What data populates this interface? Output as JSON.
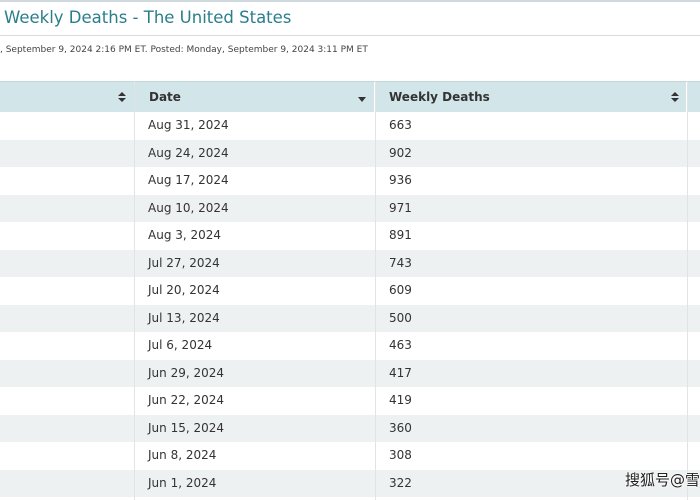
{
  "page": {
    "title": "Weekly Deaths - The United States",
    "meta": ", September 9, 2024 2:16 PM ET. Posted: Monday, September 9, 2024 3:11 PM ET"
  },
  "table": {
    "columns": [
      {
        "label": "",
        "sort": "both"
      },
      {
        "label": "Date",
        "sort": "desc"
      },
      {
        "label": "Weekly Deaths",
        "sort": "both"
      }
    ],
    "rows": [
      {
        "date": "Aug 31, 2024",
        "deaths": "663"
      },
      {
        "date": "Aug 24, 2024",
        "deaths": "902"
      },
      {
        "date": "Aug 17, 2024",
        "deaths": "936"
      },
      {
        "date": "Aug 10, 2024",
        "deaths": "971"
      },
      {
        "date": "Aug 3, 2024",
        "deaths": "891"
      },
      {
        "date": "Jul 27, 2024",
        "deaths": "743"
      },
      {
        "date": "Jul 20, 2024",
        "deaths": "609"
      },
      {
        "date": "Jul 13, 2024",
        "deaths": "500"
      },
      {
        "date": "Jul 6, 2024",
        "deaths": "463"
      },
      {
        "date": "Jun 29, 2024",
        "deaths": "417"
      },
      {
        "date": "Jun 22, 2024",
        "deaths": "419"
      },
      {
        "date": "Jun 15, 2024",
        "deaths": "360"
      },
      {
        "date": "Jun 8, 2024",
        "deaths": "308"
      },
      {
        "date": "Jun 1, 2024",
        "deaths": "322"
      }
    ]
  },
  "watermark": "搜狐号@雪"
}
